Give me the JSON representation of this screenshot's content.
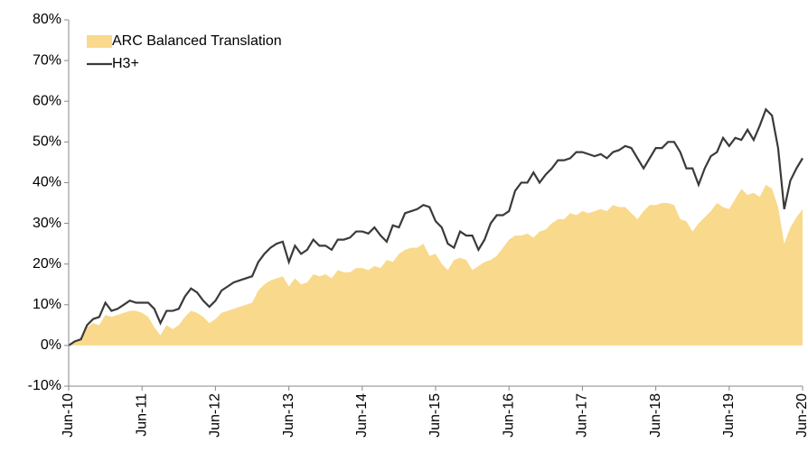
{
  "chart_data": {
    "type": "area_line",
    "categories": [
      "Jun-10",
      null,
      null,
      null,
      null,
      null,
      null,
      null,
      null,
      null,
      null,
      null,
      "Jun-11",
      null,
      null,
      null,
      null,
      null,
      null,
      null,
      null,
      null,
      null,
      null,
      "Jun-12",
      null,
      null,
      null,
      null,
      null,
      null,
      null,
      null,
      null,
      null,
      null,
      "Jun-13",
      null,
      null,
      null,
      null,
      null,
      null,
      null,
      null,
      null,
      null,
      null,
      "Jun-14",
      null,
      null,
      null,
      null,
      null,
      null,
      null,
      null,
      null,
      null,
      null,
      "Jun-15",
      null,
      null,
      null,
      null,
      null,
      null,
      null,
      null,
      null,
      null,
      null,
      "Jun-16",
      null,
      null,
      null,
      null,
      null,
      null,
      null,
      null,
      null,
      null,
      null,
      "Jun-17",
      null,
      null,
      null,
      null,
      null,
      null,
      null,
      null,
      null,
      null,
      null,
      "Jun-18",
      null,
      null,
      null,
      null,
      null,
      null,
      null,
      null,
      null,
      null,
      null,
      "Jun-19",
      null,
      null,
      null,
      null,
      null,
      null,
      null,
      null,
      null,
      null,
      null,
      "Jun-20"
    ],
    "series": [
      {
        "name": "ARC Balanced Translation",
        "kind": "area",
        "color": "#f9d98c",
        "values": [
          0,
          1,
          2,
          4.5,
          5.5,
          5,
          7.5,
          7,
          7.5,
          8,
          8.5,
          8.5,
          8,
          7,
          4.5,
          2.5,
          5,
          4,
          5,
          7,
          8.5,
          8,
          7,
          5.5,
          6.5,
          8,
          8.5,
          9,
          9.5,
          10,
          10.5,
          13.5,
          15,
          16,
          16.5,
          17,
          14.5,
          16.5,
          15,
          15.5,
          17.5,
          17,
          17.5,
          16.5,
          18.5,
          18,
          18,
          19,
          19,
          18.5,
          19.5,
          19,
          21,
          20.5,
          22.5,
          23.5,
          24,
          24,
          25,
          22,
          22.5,
          20,
          18.5,
          21,
          21.5,
          21,
          18.5,
          19.5,
          20.5,
          21,
          22,
          24,
          26,
          27,
          27,
          27.5,
          26.5,
          28,
          28.5,
          30,
          31,
          31,
          32.5,
          32,
          33,
          32.5,
          33,
          33.5,
          33,
          34.5,
          34,
          34,
          32.5,
          31,
          33,
          34.5,
          34.5,
          35,
          35,
          34.5,
          31,
          30.5,
          28,
          30,
          31.5,
          33,
          35,
          34,
          33.5,
          36,
          38.5,
          37,
          37.5,
          36.5,
          39.5,
          38.5,
          34,
          25,
          29,
          31.5,
          33.5
        ]
      },
      {
        "name": "H3+",
        "kind": "line",
        "color": "#3a3a3a",
        "values": [
          0,
          1,
          1.5,
          5,
          6.5,
          7,
          10.5,
          8.5,
          9,
          10,
          11,
          10.5,
          10.5,
          10.5,
          9,
          5.5,
          8.5,
          8.5,
          9,
          12,
          14,
          13,
          11,
          9.5,
          11,
          13.5,
          14.5,
          15.5,
          16,
          16.5,
          17,
          20.5,
          22.5,
          24,
          25,
          25.5,
          20.5,
          24.5,
          22.5,
          23.5,
          26,
          24.5,
          24.5,
          23.5,
          26,
          26,
          26.5,
          28,
          28,
          27.5,
          29,
          27,
          25.5,
          29.5,
          29,
          32.5,
          33,
          33.5,
          34.5,
          34,
          30.5,
          29,
          25,
          24,
          28,
          27,
          27,
          23.5,
          26,
          30,
          32,
          32,
          33,
          38,
          40,
          40,
          42.5,
          40,
          42,
          43.5,
          45.5,
          45.5,
          46,
          47.5,
          47.5,
          47,
          46.5,
          47,
          46,
          47.5,
          48,
          49,
          48.5,
          46,
          43.5,
          46,
          48.5,
          48.5,
          50,
          50,
          47.5,
          43.5,
          43.5,
          39.5,
          43.5,
          46.5,
          47.5,
          51,
          49,
          51,
          50.5,
          53,
          50.5,
          54,
          58,
          56.5,
          48.5,
          33.5,
          40.5,
          43.5,
          46
        ]
      }
    ],
    "ylim": [
      -10,
      80
    ],
    "yticks": [
      {
        "value": -10,
        "label": "-10%"
      },
      {
        "value": 0,
        "label": "0%"
      },
      {
        "value": 10,
        "label": "10%"
      },
      {
        "value": 20,
        "label": "20%"
      },
      {
        "value": 30,
        "label": "30%"
      },
      {
        "value": 40,
        "label": "40%"
      },
      {
        "value": 50,
        "label": "50%"
      },
      {
        "value": 60,
        "label": "60%"
      },
      {
        "value": 70,
        "label": "70%"
      },
      {
        "value": 80,
        "label": "80%"
      }
    ],
    "legend": "top-left"
  }
}
